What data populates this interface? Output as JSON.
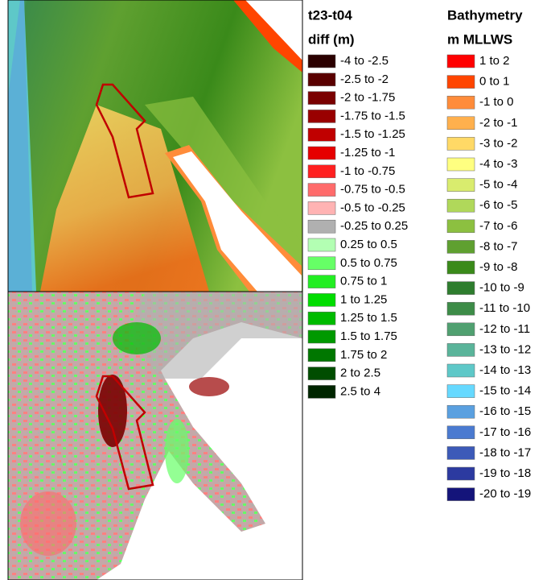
{
  "legends": [
    {
      "title": [
        "t23-t04",
        "diff (m)"
      ],
      "items": [
        {
          "label": "-4 to -2.5",
          "color": "#2b0000"
        },
        {
          "label": "-2.5 to -2",
          "color": "#5a0000"
        },
        {
          "label": "-2 to -1.75",
          "color": "#7a0000"
        },
        {
          "label": "-1.75 to -1.5",
          "color": "#990000"
        },
        {
          "label": "-1.5 to -1.25",
          "color": "#c00000"
        },
        {
          "label": "-1.25 to -1",
          "color": "#e60000"
        },
        {
          "label": "-1 to -0.75",
          "color": "#ff2020"
        },
        {
          "label": "-0.75 to -0.5",
          "color": "#ff6b6b"
        },
        {
          "label": "-0.5 to -0.25",
          "color": "#ffb3b3"
        },
        {
          "label": "-0.25 to 0.25",
          "color": "#b0b0b0"
        },
        {
          "label": "0.25 to 0.5",
          "color": "#b3ffb3"
        },
        {
          "label": "0.5 to 0.75",
          "color": "#66ff66"
        },
        {
          "label": "0.75 to 1",
          "color": "#22ee22"
        },
        {
          "label": "1 to 1.25",
          "color": "#00dd00"
        },
        {
          "label": "1.25 to 1.5",
          "color": "#00bb00"
        },
        {
          "label": "1.5 to 1.75",
          "color": "#009900"
        },
        {
          "label": "1.75 to 2",
          "color": "#007700"
        },
        {
          "label": "2 to 2.5",
          "color": "#004d00"
        },
        {
          "label": "2.5 to 4",
          "color": "#002600"
        }
      ]
    },
    {
      "title": [
        "Bathymetry",
        "m MLLWS"
      ],
      "items": [
        {
          "label": "1 to 2",
          "color": "#ff0000"
        },
        {
          "label": "0 to 1",
          "color": "#ff4500"
        },
        {
          "label": "-1 to 0",
          "color": "#ff8c3a"
        },
        {
          "label": "-2 to -1",
          "color": "#ffb04d"
        },
        {
          "label": "-3 to -2",
          "color": "#ffd966"
        },
        {
          "label": "-4 to -3",
          "color": "#ffff80"
        },
        {
          "label": "-5 to -4",
          "color": "#d9ec6e"
        },
        {
          "label": "-6 to -5",
          "color": "#b0d85a"
        },
        {
          "label": "-7 to -6",
          "color": "#8cc040"
        },
        {
          "label": "-8 to -7",
          "color": "#5fa030"
        },
        {
          "label": "-9 to -8",
          "color": "#3a8a1a"
        },
        {
          "label": "-10 to -9",
          "color": "#2e7d2e"
        },
        {
          "label": "-11 to -10",
          "color": "#3d8c48"
        },
        {
          "label": "-12 to -11",
          "color": "#50a070"
        },
        {
          "label": "-13 to -12",
          "color": "#5ab49a"
        },
        {
          "label": "-14 to -13",
          "color": "#5ec8c8"
        },
        {
          "label": "-15 to -14",
          "color": "#66d9ff"
        },
        {
          "label": "-16 to -15",
          "color": "#5aa0e0"
        },
        {
          "label": "-17 to -16",
          "color": "#4a7ad0"
        },
        {
          "label": "-18 to -17",
          "color": "#3c5ab8"
        },
        {
          "label": "-19 to -18",
          "color": "#2c3aa0"
        },
        {
          "label": "-20 to -19",
          "color": "#14147a"
        }
      ]
    }
  ]
}
